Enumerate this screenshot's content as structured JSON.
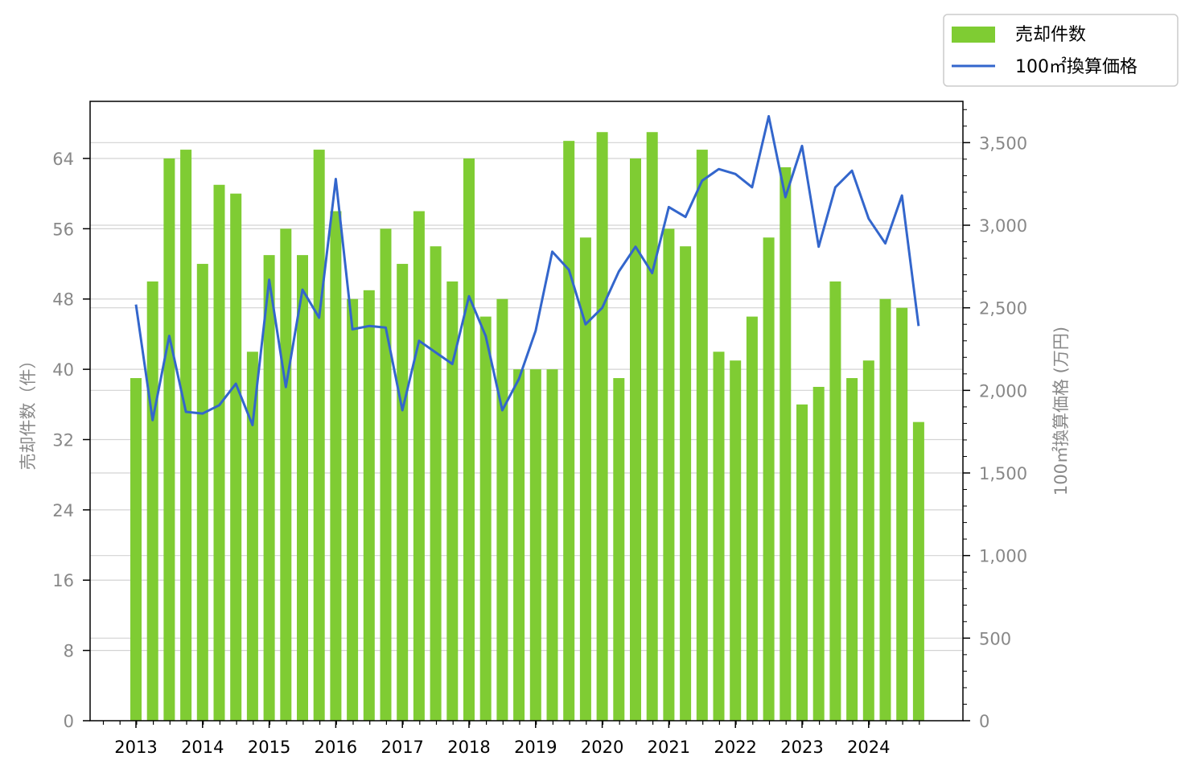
{
  "chart_data": {
    "type": "bar+line",
    "x_ticks": [
      "2013",
      "2014",
      "2015",
      "2016",
      "2017",
      "2018",
      "2019",
      "2020",
      "2021",
      "2022",
      "2023",
      "2024"
    ],
    "left_axis": {
      "label": "売却件数（件）",
      "ylim": [
        0,
        70.5
      ],
      "ticks": [
        0,
        8,
        16,
        24,
        32,
        40,
        48,
        56,
        64
      ]
    },
    "right_axis": {
      "label": "100㎡換算価格 (万円)",
      "ylim": [
        0,
        3750
      ],
      "ticks": [
        0,
        500,
        1000,
        1500,
        2000,
        2500,
        3000,
        3500
      ],
      "tick_labels": [
        "0",
        "500",
        "1,000",
        "1,500",
        "2,000",
        "2,500",
        "3,000",
        "3,500"
      ]
    },
    "legend": {
      "placement": "top-right-outside"
    },
    "colors": {
      "bar": "#7fcc33",
      "line": "#3366cc"
    },
    "series": [
      {
        "name": "売却件数",
        "type": "bar",
        "axis": "left",
        "values": [
          39,
          50,
          64,
          65,
          52,
          61,
          60,
          42,
          53,
          56,
          53,
          65,
          58,
          48,
          49,
          56,
          52,
          58,
          54,
          50,
          64,
          46,
          48,
          40,
          40,
          40,
          66,
          55,
          67,
          39,
          64,
          67,
          56,
          54,
          65,
          42,
          41,
          46,
          55,
          63,
          36,
          38,
          50,
          39,
          41,
          48,
          47,
          34
        ]
      },
      {
        "name": "100㎡換算価格",
        "type": "line",
        "axis": "right",
        "values": [
          2520,
          1820,
          2330,
          1870,
          1860,
          1910,
          2040,
          1790,
          2670,
          2020,
          2610,
          2440,
          3280,
          2370,
          2390,
          2380,
          1880,
          2300,
          2230,
          2160,
          2570,
          2330,
          1880,
          2070,
          2360,
          2840,
          2730,
          2400,
          2500,
          2720,
          2870,
          2710,
          3110,
          3050,
          3270,
          3340,
          3310,
          3230,
          3660,
          3170,
          3480,
          2870,
          3230,
          3330,
          3040,
          2890,
          3180,
          2390
        ]
      }
    ]
  }
}
